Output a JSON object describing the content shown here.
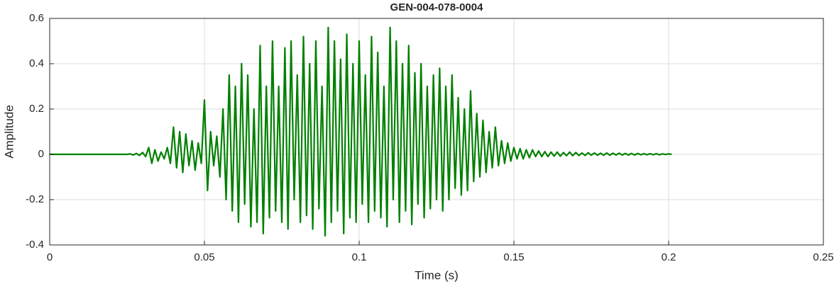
{
  "chart_data": {
    "type": "line",
    "title": "GEN-004-078-0004",
    "x_label": "Time (s)",
    "y_label": "Amplitude",
    "x": [
      0,
      0.001,
      0.002,
      0.003,
      0.004,
      0.005,
      0.006,
      0.007,
      0.008,
      0.009,
      0.01,
      0.011,
      0.012,
      0.013,
      0.014,
      0.015,
      0.016,
      0.017,
      0.018,
      0.019,
      0.02,
      0.021,
      0.022,
      0.023,
      0.024,
      0.025,
      0.026,
      0.027,
      0.028,
      0.029,
      0.03,
      0.031,
      0.032,
      0.033,
      0.034,
      0.035,
      0.036,
      0.037,
      0.038,
      0.039,
      0.04,
      0.041,
      0.042,
      0.043,
      0.044,
      0.045,
      0.046,
      0.047,
      0.048,
      0.049,
      0.05,
      0.051,
      0.052,
      0.053,
      0.054,
      0.055,
      0.056,
      0.057,
      0.058,
      0.059,
      0.06,
      0.061,
      0.062,
      0.063,
      0.064,
      0.065,
      0.066,
      0.067,
      0.068,
      0.069,
      0.07,
      0.071,
      0.072,
      0.073,
      0.074,
      0.075,
      0.076,
      0.077,
      0.078,
      0.079,
      0.08,
      0.081,
      0.082,
      0.083,
      0.084,
      0.085,
      0.086,
      0.087,
      0.088,
      0.089,
      0.09,
      0.091,
      0.092,
      0.093,
      0.094,
      0.095,
      0.096,
      0.097,
      0.098,
      0.099,
      0.1,
      0.101,
      0.102,
      0.103,
      0.104,
      0.105,
      0.106,
      0.107,
      0.108,
      0.109,
      0.11,
      0.111,
      0.112,
      0.113,
      0.114,
      0.115,
      0.116,
      0.117,
      0.118,
      0.119,
      0.12,
      0.121,
      0.122,
      0.123,
      0.124,
      0.125,
      0.126,
      0.127,
      0.128,
      0.129,
      0.13,
      0.131,
      0.132,
      0.133,
      0.134,
      0.135,
      0.136,
      0.137,
      0.138,
      0.139,
      0.14,
      0.141,
      0.142,
      0.143,
      0.144,
      0.145,
      0.146,
      0.147,
      0.148,
      0.149,
      0.15,
      0.151,
      0.152,
      0.153,
      0.154,
      0.155,
      0.156,
      0.157,
      0.158,
      0.159,
      0.16,
      0.161,
      0.162,
      0.163,
      0.164,
      0.165,
      0.166,
      0.167,
      0.168,
      0.169,
      0.17,
      0.171,
      0.172,
      0.173,
      0.174,
      0.175,
      0.176,
      0.177,
      0.178,
      0.179,
      0.18,
      0.181,
      0.182,
      0.183,
      0.184,
      0.185,
      0.186,
      0.187,
      0.188,
      0.189,
      0.19,
      0.191,
      0.192,
      0.193,
      0.194,
      0.195,
      0.196,
      0.197,
      0.198,
      0.199,
      0.2,
      0.201
    ],
    "series": [
      {
        "color": "#008000",
        "values": [
          0,
          0,
          0,
          0,
          0,
          0,
          0,
          0,
          0,
          0,
          0,
          0,
          0,
          0,
          0,
          0,
          0,
          0,
          0,
          0,
          0,
          0,
          0,
          0,
          0,
          0,
          0.002,
          -0.003,
          0.004,
          -0.005,
          0.008,
          -0.01,
          0.03,
          -0.04,
          0.02,
          -0.03,
          0.01,
          -0.02,
          0.03,
          -0.04,
          0.12,
          -0.06,
          0.1,
          -0.08,
          0.09,
          -0.05,
          0.06,
          -0.07,
          0.05,
          -0.04,
          0.24,
          -0.16,
          0.1,
          -0.05,
          0.08,
          -0.1,
          0.2,
          -0.2,
          0.35,
          -0.25,
          0.3,
          -0.3,
          0.4,
          -0.22,
          0.35,
          -0.32,
          0.2,
          -0.3,
          0.48,
          -0.35,
          0.3,
          -0.28,
          0.5,
          -0.25,
          0.3,
          -0.3,
          0.47,
          -0.33,
          0.5,
          -0.2,
          0.35,
          -0.3,
          0.52,
          -0.27,
          0.4,
          -0.33,
          0.5,
          -0.24,
          0.3,
          -0.36,
          0.56,
          -0.3,
          0.5,
          -0.25,
          0.42,
          -0.35,
          0.53,
          -0.28,
          0.4,
          -0.3,
          0.5,
          -0.22,
          0.35,
          -0.3,
          0.52,
          -0.25,
          0.45,
          -0.28,
          0.3,
          -0.32,
          0.56,
          -0.2,
          0.5,
          -0.3,
          0.4,
          -0.25,
          0.48,
          -0.31,
          0.36,
          -0.22,
          0.4,
          -0.28,
          0.3,
          -0.24,
          0.35,
          -0.2,
          0.38,
          -0.25,
          0.3,
          -0.2,
          0.35,
          -0.15,
          0.25,
          -0.18,
          0.2,
          -0.16,
          0.28,
          -0.12,
          0.18,
          -0.1,
          0.15,
          -0.08,
          0.1,
          -0.06,
          0.12,
          -0.05,
          0.06,
          -0.04,
          0.05,
          -0.03,
          0.03,
          -0.02,
          0.025,
          -0.02,
          0.02,
          -0.015,
          0.02,
          -0.01,
          0.015,
          -0.01,
          0.012,
          -0.01,
          0.01,
          -0.008,
          0.01,
          -0.008,
          0.008,
          -0.006,
          0.01,
          -0.006,
          0.008,
          -0.005,
          0.006,
          -0.005,
          0.007,
          -0.004,
          0.006,
          -0.004,
          0.005,
          -0.004,
          0.006,
          -0.004,
          0.005,
          -0.003,
          0.005,
          -0.003,
          0.004,
          -0.003,
          0.004,
          -0.003,
          0.004,
          -0.002,
          0.003,
          -0.002,
          0.003,
          -0.002,
          0.003,
          -0.002,
          0.002,
          -0.001,
          0.002,
          0
        ]
      }
    ],
    "xlim": [
      0,
      0.25
    ],
    "xticks": [
      0,
      0.05,
      0.1,
      0.15,
      0.2,
      0.25
    ],
    "ylim": [
      -0.4,
      0.6
    ],
    "yticks": [
      -0.4,
      -0.2,
      0,
      0.2,
      0.4,
      0.6
    ],
    "grid": true
  }
}
